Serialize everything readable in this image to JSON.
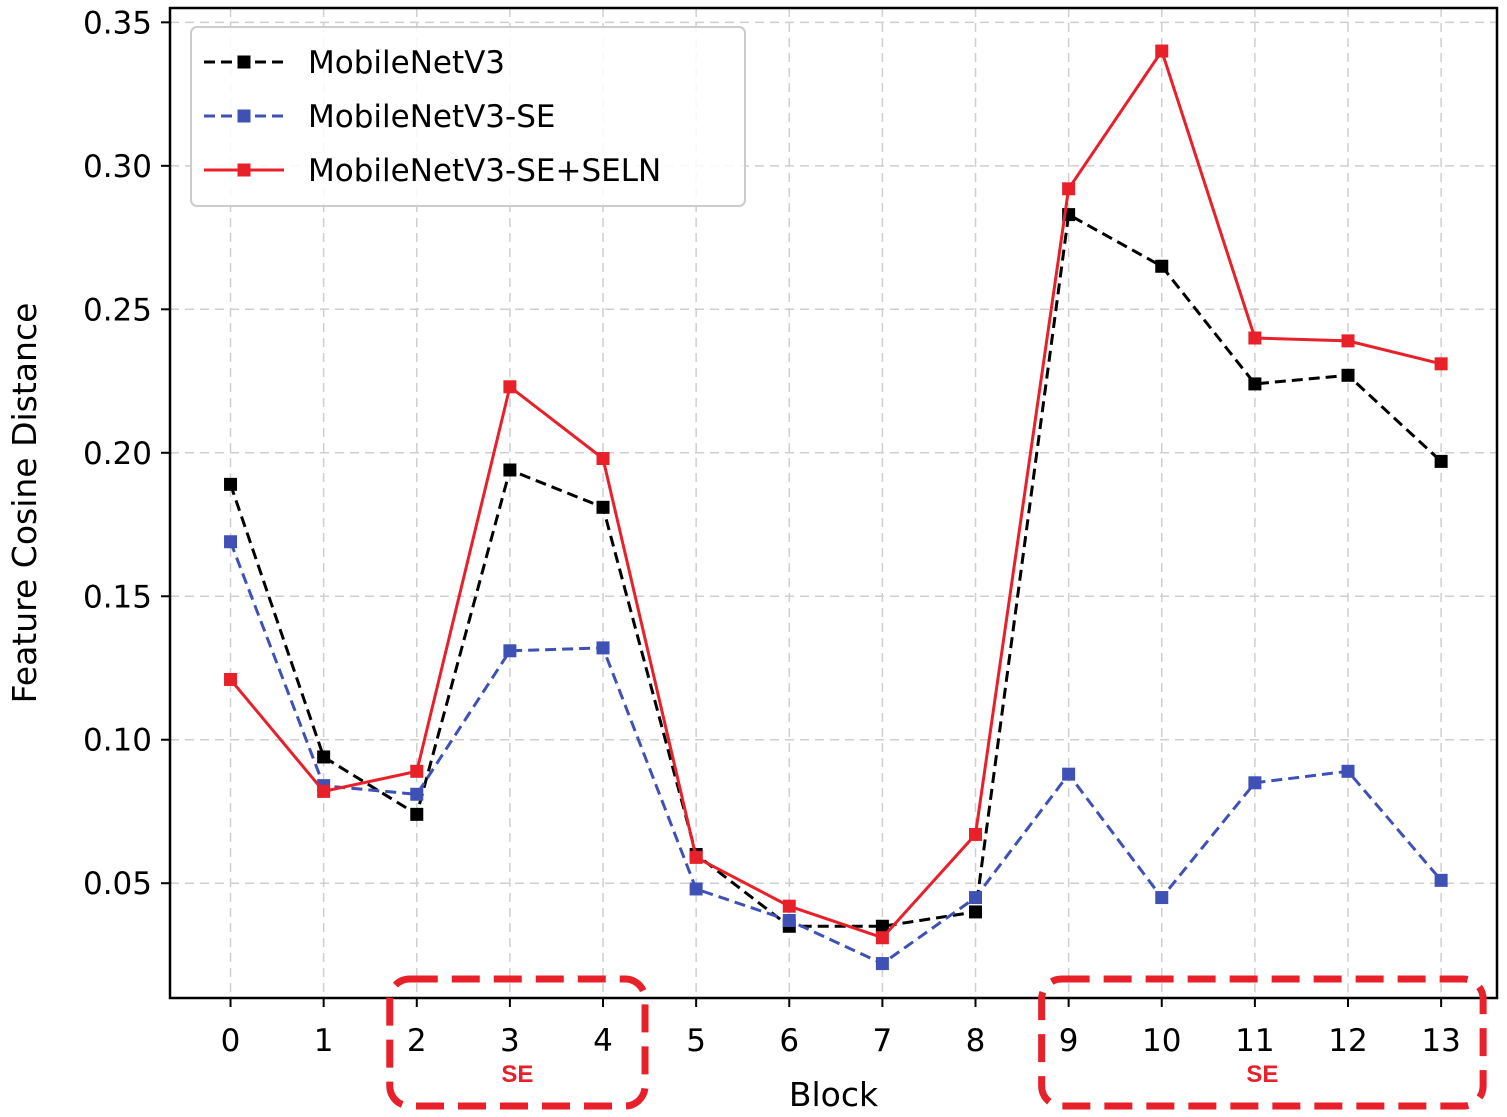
{
  "chart_data": {
    "type": "line",
    "title": "",
    "xlabel": "Block",
    "ylabel": "Feature Cosine Distance",
    "x": [
      0,
      1,
      2,
      3,
      4,
      5,
      6,
      7,
      8,
      9,
      10,
      11,
      12,
      13
    ],
    "xlim": [
      -0.65,
      13.6
    ],
    "ylim": [
      0.01,
      0.355
    ],
    "yticks": [
      0.05,
      0.1,
      0.15,
      0.2,
      0.25,
      0.3,
      0.35
    ],
    "ytick_labels": [
      "0.05",
      "0.10",
      "0.15",
      "0.20",
      "0.25",
      "0.30",
      "0.35"
    ],
    "grid": true,
    "legend_position": "top-left",
    "series": [
      {
        "name": "MobileNetV3",
        "color": "#000000",
        "linestyle": "dashed",
        "marker": "square",
        "values": [
          0.189,
          0.094,
          0.074,
          0.194,
          0.181,
          0.06,
          0.035,
          0.035,
          0.04,
          0.283,
          0.265,
          0.224,
          0.227,
          0.197
        ]
      },
      {
        "name": "MobileNetV3-SE",
        "color": "#3f51b5",
        "linestyle": "dashed",
        "marker": "square",
        "values": [
          0.169,
          0.084,
          0.081,
          0.131,
          0.132,
          0.048,
          0.037,
          0.022,
          0.045,
          0.088,
          0.045,
          0.085,
          0.089,
          0.051
        ]
      },
      {
        "name": "MobileNetV3-SE+SELN",
        "color": "#e8202a",
        "linestyle": "solid",
        "marker": "square",
        "values": [
          0.121,
          0.082,
          0.089,
          0.223,
          0.198,
          0.059,
          0.042,
          0.031,
          0.067,
          0.292,
          0.34,
          0.24,
          0.239,
          0.231
        ]
      }
    ],
    "annotations": [
      {
        "text": "SE",
        "x_from": 2,
        "x_to": 4,
        "color": "#e8202a",
        "style": "dashed-rounded-box"
      },
      {
        "text": "SE",
        "x_from": 9,
        "x_to": 13,
        "color": "#e8202a",
        "style": "dashed-rounded-box"
      }
    ]
  }
}
